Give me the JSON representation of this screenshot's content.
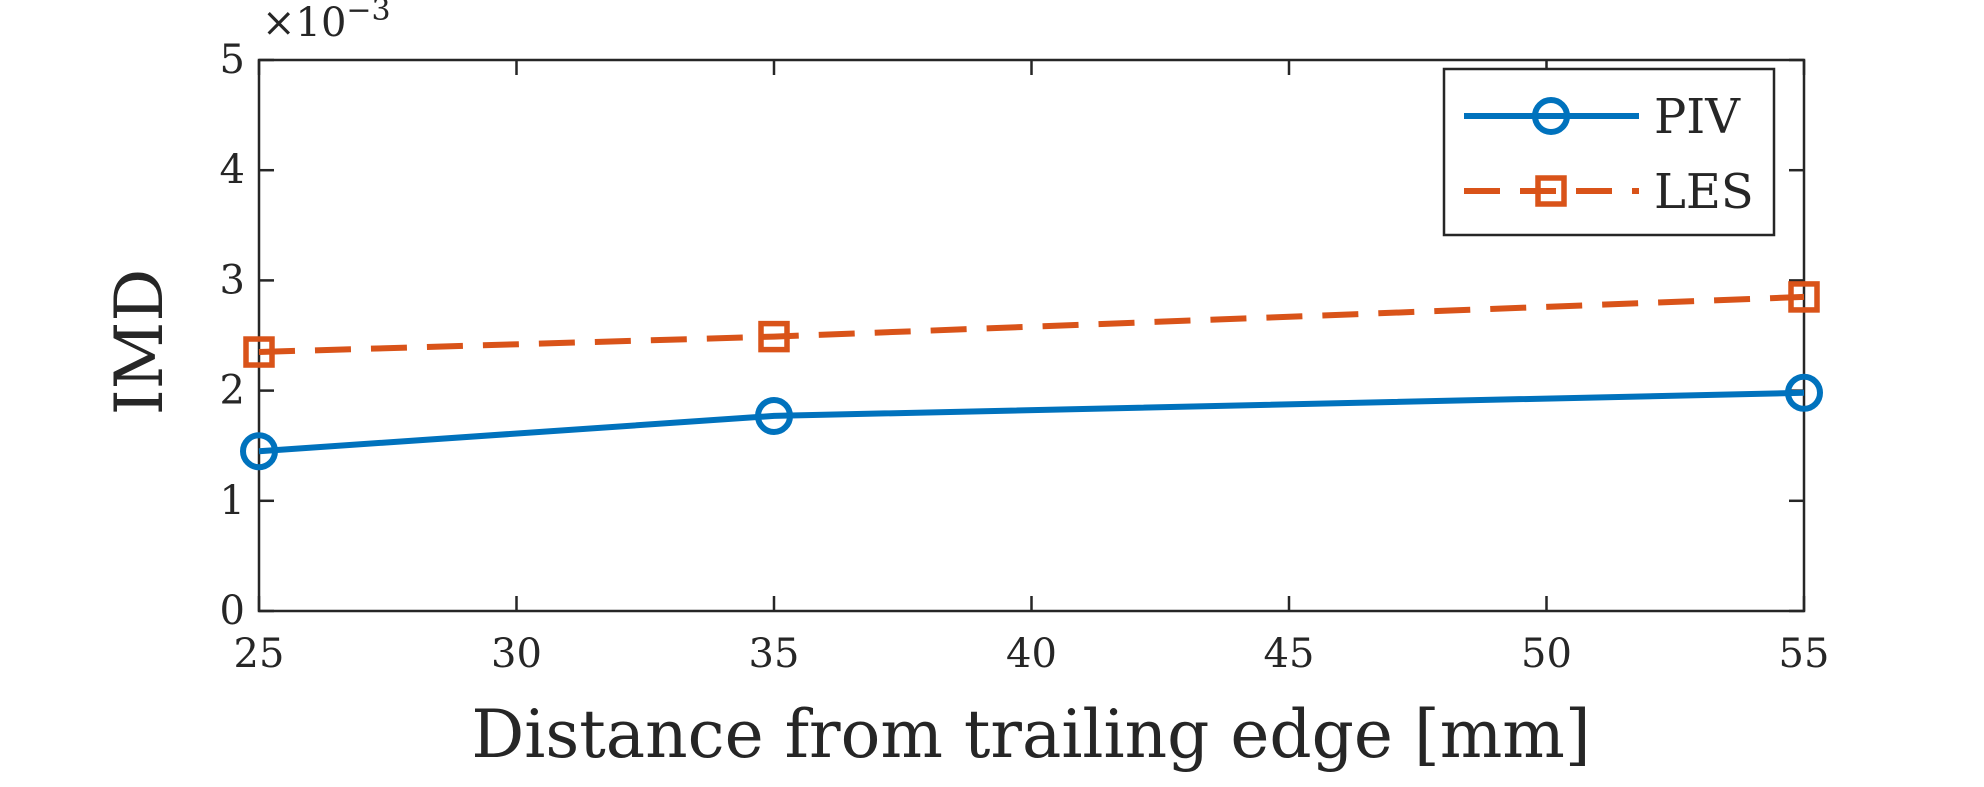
{
  "chart_data": {
    "type": "line",
    "xlabel": "Distance from trailing edge [mm]",
    "ylabel": "IMD",
    "y_exponent_base": "×10",
    "y_exponent_power": "−3",
    "xlim": [
      25,
      55
    ],
    "ylim": [
      0,
      5
    ],
    "x_ticks": [
      25,
      30,
      35,
      40,
      45,
      50,
      55
    ],
    "y_ticks": [
      0,
      1,
      2,
      3,
      4,
      5
    ],
    "grid": false,
    "legend_position": "top-right",
    "series": [
      {
        "name": "PIV",
        "color": "#0072BD",
        "line_style": "solid",
        "marker": "circle",
        "x": [
          25,
          35,
          55
        ],
        "y": [
          1.45,
          1.77,
          1.98
        ]
      },
      {
        "name": "LES",
        "color": "#D95319",
        "line_style": "dashed",
        "marker": "square",
        "x": [
          25,
          35,
          55
        ],
        "y": [
          2.35,
          2.49,
          2.85
        ]
      }
    ]
  }
}
